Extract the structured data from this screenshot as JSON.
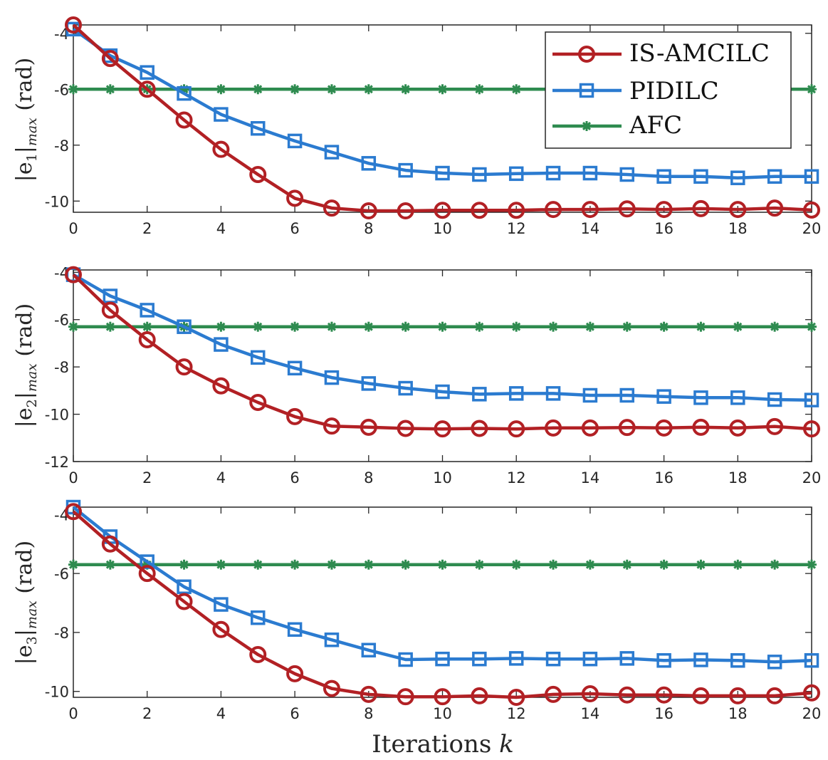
{
  "legend_labels": [
    "IS-AMCILC",
    "PIDILC",
    "AFC"
  ],
  "colors": {
    "IS-AMCILC": "#b22024",
    "PIDILC": "#2b7bd0",
    "AFC": "#2e8b4f"
  },
  "xlabel": {
    "text": "Iterations ",
    "var": "k"
  },
  "x_ticks": [
    "0",
    "2",
    "4",
    "6",
    "8",
    "10",
    "12",
    "14",
    "16",
    "18",
    "20"
  ],
  "panels": [
    {
      "ylabel": {
        "open": "|e",
        "sub_index": "1",
        "close": "|",
        "sub": "max",
        "unit": " (rad)"
      },
      "y_ticks": [
        "-4",
        "-6",
        "-8",
        "-10"
      ]
    },
    {
      "ylabel": {
        "open": "|e",
        "sub_index": "2",
        "close": "|",
        "sub": "max",
        "unit": " (rad)"
      },
      "y_ticks": [
        "-4",
        "-6",
        "-8",
        "-10",
        "-12"
      ]
    },
    {
      "ylabel": {
        "open": "|e",
        "sub_index": "3",
        "close": "|",
        "sub": "max",
        "unit": " (rad)"
      },
      "y_ticks": [
        "-4",
        "-6",
        "-8",
        "-10"
      ]
    }
  ],
  "chart_data": [
    {
      "type": "line",
      "xlabel": "Iterations k",
      "ylabel": "|e1|max (rad)",
      "xlim": [
        0,
        20
      ],
      "ylim": [
        -10.4,
        -3.7
      ],
      "yticks": [
        -4,
        -6,
        -8,
        -10
      ],
      "legend_position": "top-right",
      "x": [
        0,
        1,
        2,
        3,
        4,
        5,
        6,
        7,
        8,
        9,
        10,
        11,
        12,
        13,
        14,
        15,
        16,
        17,
        18,
        19,
        20
      ],
      "series": [
        {
          "name": "IS-AMCILC",
          "marker": "circle",
          "values": [
            -3.7,
            -4.9,
            -6.0,
            -7.1,
            -8.15,
            -9.05,
            -9.9,
            -10.25,
            -10.35,
            -10.35,
            -10.33,
            -10.33,
            -10.33,
            -10.3,
            -10.3,
            -10.28,
            -10.3,
            -10.27,
            -10.3,
            -10.25,
            -10.32
          ]
        },
        {
          "name": "PIDILC",
          "marker": "square",
          "values": [
            -3.85,
            -4.8,
            -5.4,
            -6.15,
            -6.9,
            -7.4,
            -7.85,
            -8.25,
            -8.65,
            -8.9,
            -9.0,
            -9.05,
            -9.02,
            -9.0,
            -9.0,
            -9.05,
            -9.12,
            -9.12,
            -9.17,
            -9.12,
            -9.12
          ]
        },
        {
          "name": "AFC",
          "marker": "star",
          "values": [
            -6.0,
            -6.0,
            -6.0,
            -6.0,
            -6.0,
            -6.0,
            -6.0,
            -6.0,
            -6.0,
            -6.0,
            -6.0,
            -6.0,
            -6.0,
            -6.0,
            -6.0,
            -6.0,
            -6.0,
            -6.0,
            -6.0,
            -6.0,
            -6.0
          ]
        }
      ]
    },
    {
      "type": "line",
      "xlabel": "Iterations k",
      "ylabel": "|e2|max (rad)",
      "xlim": [
        0,
        20
      ],
      "ylim": [
        -12,
        -3.9
      ],
      "yticks": [
        -4,
        -6,
        -8,
        -10,
        -12
      ],
      "x": [
        0,
        1,
        2,
        3,
        4,
        5,
        6,
        7,
        8,
        9,
        10,
        11,
        12,
        13,
        14,
        15,
        16,
        17,
        18,
        19,
        20
      ],
      "series": [
        {
          "name": "IS-AMCILC",
          "marker": "circle",
          "values": [
            -4.1,
            -5.6,
            -6.85,
            -8.0,
            -8.8,
            -9.5,
            -10.1,
            -10.5,
            -10.55,
            -10.6,
            -10.62,
            -10.6,
            -10.62,
            -10.58,
            -10.58,
            -10.56,
            -10.58,
            -10.55,
            -10.58,
            -10.52,
            -10.62
          ]
        },
        {
          "name": "PIDILC",
          "marker": "square",
          "values": [
            -4.1,
            -5.0,
            -5.6,
            -6.3,
            -7.05,
            -7.6,
            -8.05,
            -8.45,
            -8.7,
            -8.9,
            -9.05,
            -9.15,
            -9.12,
            -9.12,
            -9.2,
            -9.2,
            -9.25,
            -9.3,
            -9.3,
            -9.38,
            -9.4
          ]
        },
        {
          "name": "AFC",
          "marker": "star",
          "values": [
            -6.3,
            -6.3,
            -6.3,
            -6.3,
            -6.3,
            -6.3,
            -6.3,
            -6.3,
            -6.3,
            -6.3,
            -6.3,
            -6.3,
            -6.3,
            -6.3,
            -6.3,
            -6.3,
            -6.3,
            -6.3,
            -6.3,
            -6.3,
            -6.3
          ]
        }
      ]
    },
    {
      "type": "line",
      "xlabel": "Iterations k",
      "ylabel": "|e3|max (rad)",
      "xlim": [
        0,
        20
      ],
      "ylim": [
        -10.2,
        -3.75
      ],
      "yticks": [
        -4,
        -6,
        -8,
        -10
      ],
      "x": [
        0,
        1,
        2,
        3,
        4,
        5,
        6,
        7,
        8,
        9,
        10,
        11,
        12,
        13,
        14,
        15,
        16,
        17,
        18,
        19,
        20
      ],
      "series": [
        {
          "name": "IS-AMCILC",
          "marker": "circle",
          "values": [
            -3.9,
            -5.0,
            -6.0,
            -6.95,
            -7.9,
            -8.75,
            -9.4,
            -9.9,
            -10.1,
            -10.18,
            -10.18,
            -10.15,
            -10.2,
            -10.1,
            -10.08,
            -10.12,
            -10.12,
            -10.15,
            -10.15,
            -10.15,
            -10.05
          ]
        },
        {
          "name": "PIDILC",
          "marker": "square",
          "values": [
            -3.75,
            -4.75,
            -5.6,
            -6.45,
            -7.05,
            -7.5,
            -7.9,
            -8.25,
            -8.6,
            -8.92,
            -8.9,
            -8.9,
            -8.88,
            -8.9,
            -8.9,
            -8.88,
            -8.95,
            -8.93,
            -8.95,
            -9.0,
            -8.95
          ]
        },
        {
          "name": "AFC",
          "marker": "star",
          "values": [
            -5.7,
            -5.7,
            -5.7,
            -5.7,
            -5.7,
            -5.7,
            -5.7,
            -5.7,
            -5.7,
            -5.7,
            -5.7,
            -5.7,
            -5.7,
            -5.7,
            -5.7,
            -5.7,
            -5.7,
            -5.7,
            -5.7,
            -5.7,
            -5.7
          ]
        }
      ]
    }
  ]
}
